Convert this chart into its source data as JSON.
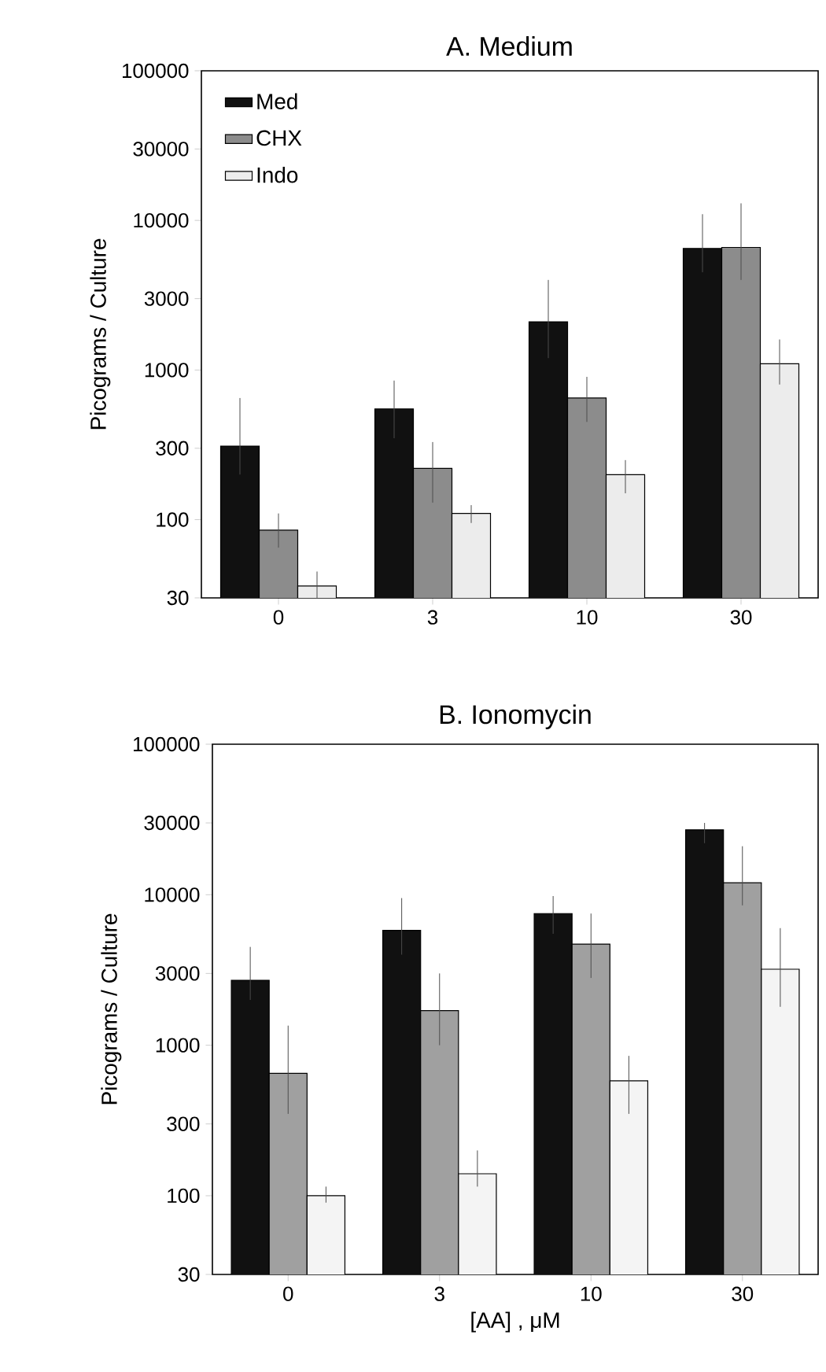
{
  "chart_data": [
    {
      "type": "bar",
      "title": "A. Medium",
      "ylabel": "Picograms / Culture",
      "categories": [
        "0",
        "3",
        "10",
        "30"
      ],
      "log": true,
      "ylim": [
        30,
        100000
      ],
      "yticks": [
        30,
        100,
        300,
        1000,
        3000,
        10000,
        30000,
        100000
      ],
      "legend": "top left",
      "series": [
        {
          "name": "Med",
          "color": "#111111",
          "values": [
            310,
            550,
            2100,
            6500
          ],
          "errors": [
            [
              200,
              650
            ],
            [
              350,
              850
            ],
            [
              1200,
              4000
            ],
            [
              4500,
              11000
            ]
          ]
        },
        {
          "name": "CHX",
          "color": "#8c8c8c",
          "values": [
            85,
            220,
            650,
            6600
          ],
          "errors": [
            [
              65,
              110
            ],
            [
              130,
              330
            ],
            [
              450,
              900
            ],
            [
              4000,
              13000
            ]
          ]
        },
        {
          "name": "Indo",
          "color": "#ececec",
          "values": [
            36,
            110,
            200,
            1100
          ],
          "errors": [
            [
              30,
              45
            ],
            [
              95,
              125
            ],
            [
              150,
              250
            ],
            [
              800,
              1600
            ]
          ]
        }
      ]
    },
    {
      "type": "bar",
      "title": "B. Ionomycin",
      "xlabel": "[AA] , μM",
      "ylabel": "Picograms / Culture",
      "categories": [
        "0",
        "3",
        "10",
        "30"
      ],
      "log": true,
      "ylim": [
        30,
        100000
      ],
      "yticks": [
        30,
        100,
        300,
        1000,
        3000,
        10000,
        30000,
        100000
      ],
      "series": [
        {
          "color": "#111111",
          "values": [
            2700,
            5800,
            7500,
            27000
          ],
          "errors": [
            [
              2000,
              4500
            ],
            [
              4000,
              9500
            ],
            [
              5500,
              9800
            ],
            [
              22000,
              30000
            ]
          ]
        },
        {
          "color": "#a0a0a0",
          "values": [
            650,
            1700,
            4700,
            12000
          ],
          "errors": [
            [
              350,
              1350
            ],
            [
              1000,
              3000
            ],
            [
              2800,
              7500
            ],
            [
              8500,
              21000
            ]
          ]
        },
        {
          "color": "#f4f4f4",
          "values": [
            100,
            140,
            580,
            3200
          ],
          "errors": [
            [
              90,
              115
            ],
            [
              115,
              200
            ],
            [
              350,
              850
            ],
            [
              1800,
              6000
            ]
          ]
        }
      ]
    }
  ]
}
